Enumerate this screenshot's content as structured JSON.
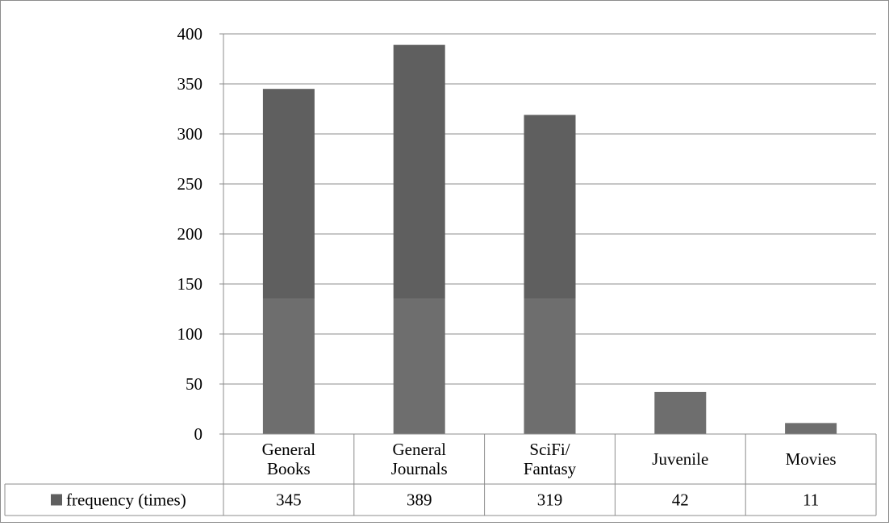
{
  "chart_data": {
    "type": "bar",
    "categories": [
      [
        "General",
        "Books"
      ],
      [
        "General",
        "Journals"
      ],
      [
        "SciFi/",
        "Fantasy"
      ],
      [
        "Juvenile"
      ],
      [
        "Movies"
      ]
    ],
    "series": [
      {
        "name": "frequency (times)",
        "values": [
          345,
          389,
          319,
          42,
          11
        ]
      }
    ],
    "ylim": [
      0,
      400
    ],
    "yticks": [
      "0",
      "50",
      "100",
      "150",
      "200",
      "250",
      "300",
      "350",
      "400"
    ],
    "table_values": [
      "345",
      "389",
      "319",
      "42",
      "11"
    ],
    "grid": true,
    "legend": "data-table-row",
    "colors": {
      "bar": "#5f5f5f",
      "bar_light": "#6e6e6e",
      "grid": "#8c8c8c",
      "border": "#8c8c8c"
    }
  }
}
